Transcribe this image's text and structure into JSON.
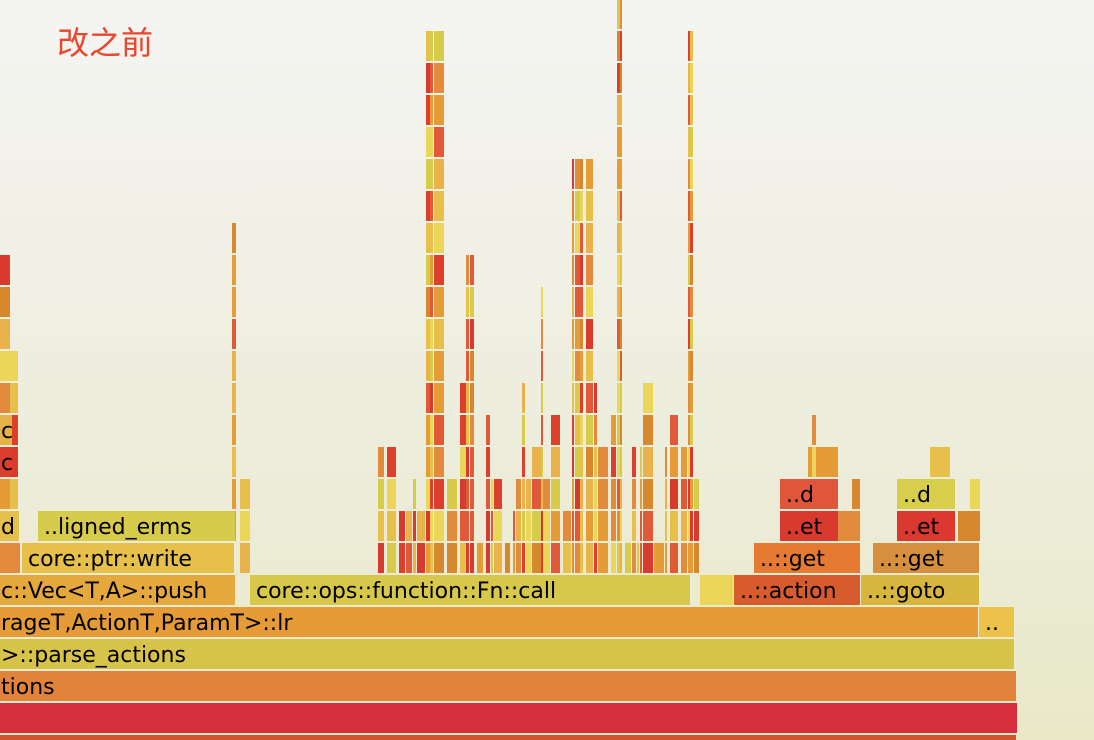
{
  "title": "改之前",
  "chart_data": {
    "type": "flamegraph",
    "frames": [
      {
        "label": "..ligned_erms",
        "depth": 5,
        "start": 38,
        "width": 197,
        "color": "#d7cb4b"
      },
      {
        "label": "d",
        "depth": 5,
        "start": -5,
        "width": 24,
        "color": "#e5c04d"
      },
      {
        "label": "core::ptr::write",
        "depth": 4,
        "start": 22,
        "width": 212,
        "color": "#e6c04a"
      },
      {
        "label": "",
        "depth": 4,
        "start": -5,
        "width": 25,
        "color": "#e38b3d"
      },
      {
        "label": "c::Vec<T,A>::push",
        "depth": 3,
        "start": -5,
        "width": 240,
        "color": "#e5a83d"
      },
      {
        "label": "core::ops::function::Fn::call",
        "depth": 3,
        "start": 250,
        "width": 440,
        "color": "#d7c84b"
      },
      {
        "label": "..::action",
        "depth": 3,
        "start": 734,
        "width": 126,
        "color": "#d75b2c"
      },
      {
        "label": "..::goto",
        "depth": 3,
        "start": 861,
        "width": 118,
        "color": "#d8b53e"
      },
      {
        "label": "..::get",
        "depth": 4,
        "start": 754,
        "width": 106,
        "color": "#e57b32"
      },
      {
        "label": "..::get",
        "depth": 4,
        "start": 873,
        "width": 106,
        "color": "#d68f3d"
      },
      {
        "label": "..et",
        "depth": 5,
        "start": 780,
        "width": 58,
        "color": "#d93a2e"
      },
      {
        "label": "..et",
        "depth": 5,
        "start": 897,
        "width": 58,
        "color": "#db3830"
      },
      {
        "label": "..d",
        "depth": 6,
        "start": 780,
        "width": 58,
        "color": "#e0563a"
      },
      {
        "label": "..d",
        "depth": 6,
        "start": 897,
        "width": 58,
        "color": "#d7cf4b"
      },
      {
        "label": "rageT,ActionT,ParamT>::lr",
        "depth": 2,
        "start": -5,
        "width": 983,
        "color": "#e59c36"
      },
      {
        "label": "..",
        "depth": 2,
        "start": 979,
        "width": 35,
        "color": "#ecc24a"
      },
      {
        "label": ">::parse_actions",
        "depth": 1,
        "start": -5,
        "width": 1019,
        "color": "#d7c24a"
      },
      {
        "label": "tions",
        "depth": 0,
        "start": -5,
        "width": 1021,
        "color": "#e1833b"
      },
      {
        "label": "",
        "depth": -1,
        "start": -5,
        "width": 1022,
        "color": "#d52e3c"
      },
      {
        "label": "",
        "depth": -2,
        "start": -5,
        "width": 1021,
        "color": "#d0532a"
      },
      {
        "label": "c",
        "depth": 8,
        "start": -5,
        "width": 17,
        "color": "#e6b248"
      },
      {
        "label": "c",
        "depth": 7,
        "start": -5,
        "width": 17,
        "color": "#dc3e2e"
      }
    ]
  }
}
